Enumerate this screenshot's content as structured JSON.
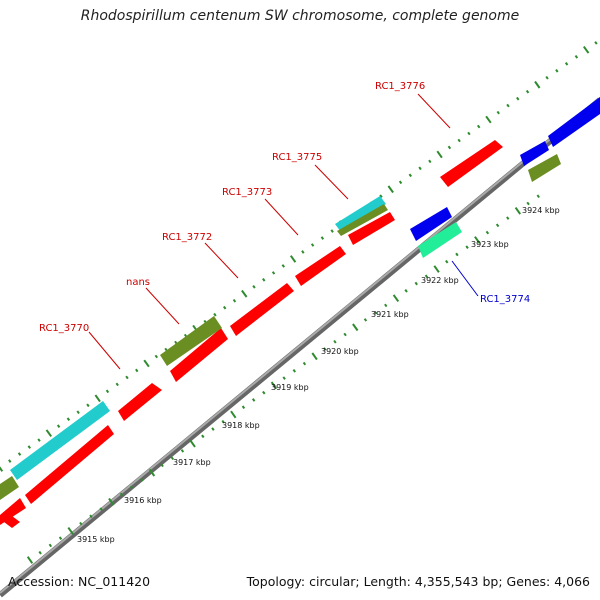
{
  "header": {
    "title": "Rhodospirillum centenum SW chromosome, complete genome"
  },
  "footer": {
    "accession": "Accession: NC_011420",
    "summary": "Topology: circular; Length: 4,355,543 bp; Genes: 4,066"
  },
  "colors": {
    "backbone": "#8c8c8c",
    "red_gene": "#ff0000",
    "blue_gene": "#0000ee",
    "cyan_gene": "#22cccc",
    "olive_gene": "#6b8e23",
    "aqua_gene": "#22ee99",
    "forward_label": "#cc0000",
    "reverse_label": "#0000cc",
    "tick": "#2e8b2e",
    "axis_text": "#111111"
  },
  "features": [
    {
      "name": "RC1_3770",
      "color": "red_gene"
    },
    {
      "name": "nans",
      "color": "olive_gene"
    },
    {
      "name": "RC1_3772",
      "color": "red_gene"
    },
    {
      "name": "RC1_3773",
      "color": "red_gene"
    },
    {
      "name": "RC1_3775",
      "color": "red_gene"
    },
    {
      "name": "RC1_3776",
      "color": "red_gene"
    },
    {
      "name": "RC1_3774",
      "color": "aqua_gene"
    }
  ],
  "kbp_labels": [
    "3915 kbp",
    "3916 kbp",
    "3917 kbp",
    "3918 kbp",
    "3919 kbp",
    "3920 kbp",
    "3921 kbp",
    "3922 kbp",
    "3923 kbp",
    "3924 kbp"
  ]
}
